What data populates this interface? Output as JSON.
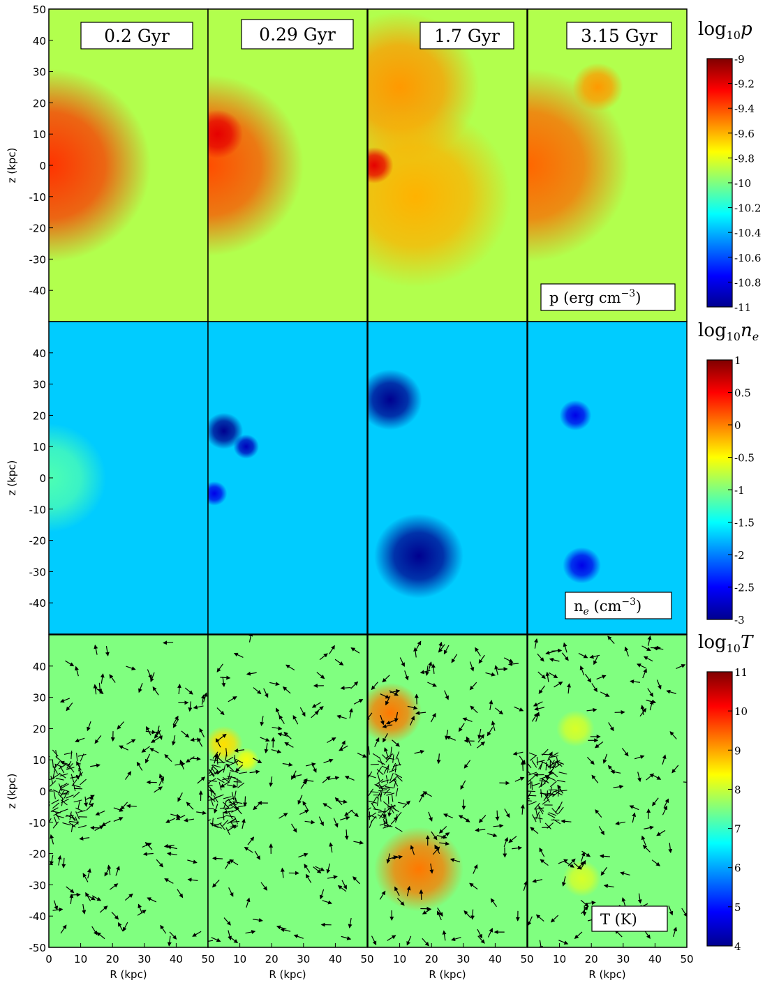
{
  "chart_data": {
    "type": "heatmap",
    "description_layout": "3 rows (quantities) x 4 columns (times), shared R and z axes",
    "time_labels": [
      "0.2 Gyr",
      "0.29 Gyr",
      "1.7 Gyr",
      "3.15 Gyr"
    ],
    "x_axis": {
      "label": "R (kpc)",
      "range": [
        0,
        50
      ],
      "ticks": [
        0,
        10,
        20,
        30,
        40,
        50
      ],
      "tick_labels": [
        "0",
        "10",
        "20",
        "30",
        "40",
        "50"
      ]
    },
    "y_axis": {
      "label": "z (kpc)",
      "range": [
        -50,
        50
      ],
      "ticks_top": [
        50,
        40,
        30,
        20,
        10,
        0,
        -10,
        -20,
        -30,
        -40
      ],
      "ticks_inner": [
        40,
        30,
        20,
        10,
        0,
        -10,
        -20,
        -30,
        -40
      ],
      "ticks_bottom": [
        40,
        30,
        20,
        10,
        0,
        -10,
        -20,
        -30,
        -40,
        -50
      ]
    },
    "rows": [
      {
        "quantity": "pressure",
        "colorbar_title": "log10p",
        "colorbar_title_base": "log",
        "colorbar_title_sub": "10",
        "colorbar_title_var": "p",
        "unit_box": "p (erg cm",
        "unit_exp": "−3",
        "unit_close": ")",
        "colorbar_range": [
          -11,
          -9
        ],
        "colorbar_ticks": [
          -9,
          -9.2,
          -9.4,
          -9.6,
          -9.8,
          -10,
          -10.2,
          -10.4,
          -10.6,
          -10.8,
          -11
        ],
        "colorbar_tick_labels": [
          "-9",
          "-9.2",
          "-9.4",
          "-9.6",
          "-9.8",
          "-10",
          "-10.2",
          "-10.4",
          "-10.6",
          "-10.8",
          "-11"
        ],
        "background_log_value": -9.9,
        "core_log_value": -9.3,
        "panels": [
          {
            "features": [
              {
                "x": 0,
                "z": 0,
                "r": 32,
                "v": -9.35
              }
            ]
          },
          {
            "features": [
              {
                "x": 0,
                "z": 0,
                "r": 30,
                "v": -9.4
              },
              {
                "x": 3,
                "z": 10,
                "r": 8,
                "v": -9.2
              }
            ]
          },
          {
            "features": [
              {
                "x": 10,
                "z": 25,
                "r": 25,
                "v": -9.55
              },
              {
                "x": 15,
                "z": -10,
                "r": 30,
                "v": -9.6
              },
              {
                "x": 2,
                "z": 0,
                "r": 6,
                "v": -9.2
              }
            ]
          },
          {
            "features": [
              {
                "x": 0,
                "z": 0,
                "r": 32,
                "v": -9.45
              },
              {
                "x": 22,
                "z": 25,
                "r": 8,
                "v": -9.55
              }
            ]
          }
        ]
      },
      {
        "quantity": "electron density",
        "colorbar_title": "log10ne",
        "colorbar_title_base": "log",
        "colorbar_title_sub": "10",
        "colorbar_title_var": "n",
        "colorbar_title_var_sub": "e",
        "unit_box": "n",
        "unit_sub": "e",
        "unit_mid": " (cm",
        "unit_exp": "−3",
        "unit_close": ")",
        "colorbar_range": [
          -3,
          1
        ],
        "colorbar_ticks": [
          1,
          0.5,
          0,
          -0.5,
          -1,
          -1.5,
          -2,
          -2.5,
          -3
        ],
        "colorbar_tick_labels": [
          "1",
          "0.5",
          "0",
          "-0.5",
          "-1",
          "-1.5",
          "-2",
          "-2.5",
          "-3"
        ],
        "background_log_value": -1.7,
        "panels": [
          {
            "features": [
              {
                "x": 0,
                "z": 0,
                "r": 18,
                "v": -1.2
              }
            ]
          },
          {
            "features": [
              {
                "x": 5,
                "z": 15,
                "r": 6,
                "v": -3
              },
              {
                "x": 12,
                "z": 10,
                "r": 4,
                "v": -2.8
              },
              {
                "x": 2,
                "z": -5,
                "r": 4,
                "v": -2.6
              }
            ]
          },
          {
            "features": [
              {
                "x": 7,
                "z": 25,
                "r": 10,
                "v": -3
              },
              {
                "x": 16,
                "z": -25,
                "r": 14,
                "v": -3
              }
            ]
          },
          {
            "features": [
              {
                "x": 15,
                "z": 20,
                "r": 5,
                "v": -2.6
              },
              {
                "x": 17,
                "z": -28,
                "r": 6,
                "v": -2.6
              }
            ]
          }
        ]
      },
      {
        "quantity": "temperature",
        "colorbar_title": "log10T",
        "colorbar_title_base": "log",
        "colorbar_title_sub": "10",
        "colorbar_title_var": "T",
        "unit_box": "T (K)",
        "colorbar_range": [
          4,
          11
        ],
        "colorbar_ticks": [
          11,
          10,
          9,
          8,
          7,
          6,
          5,
          4
        ],
        "colorbar_tick_labels": [
          "11",
          "10",
          "9",
          "8",
          "7",
          "6",
          "5",
          "4"
        ],
        "background_log_value": 7.5,
        "velocity_arrows": true,
        "panels": [
          {
            "features": []
          },
          {
            "features": [
              {
                "x": 5,
                "z": 15,
                "r": 6,
                "v": 8.6
              },
              {
                "x": 12,
                "z": 10,
                "r": 4,
                "v": 8.3
              }
            ]
          },
          {
            "features": [
              {
                "x": 7,
                "z": 25,
                "r": 10,
                "v": 9.3
              },
              {
                "x": 16,
                "z": -25,
                "r": 14,
                "v": 9.3
              }
            ]
          },
          {
            "features": [
              {
                "x": 15,
                "z": 20,
                "r": 6,
                "v": 8.1
              },
              {
                "x": 17,
                "z": -28,
                "r": 6,
                "v": 8.1
              }
            ]
          }
        ]
      }
    ]
  }
}
